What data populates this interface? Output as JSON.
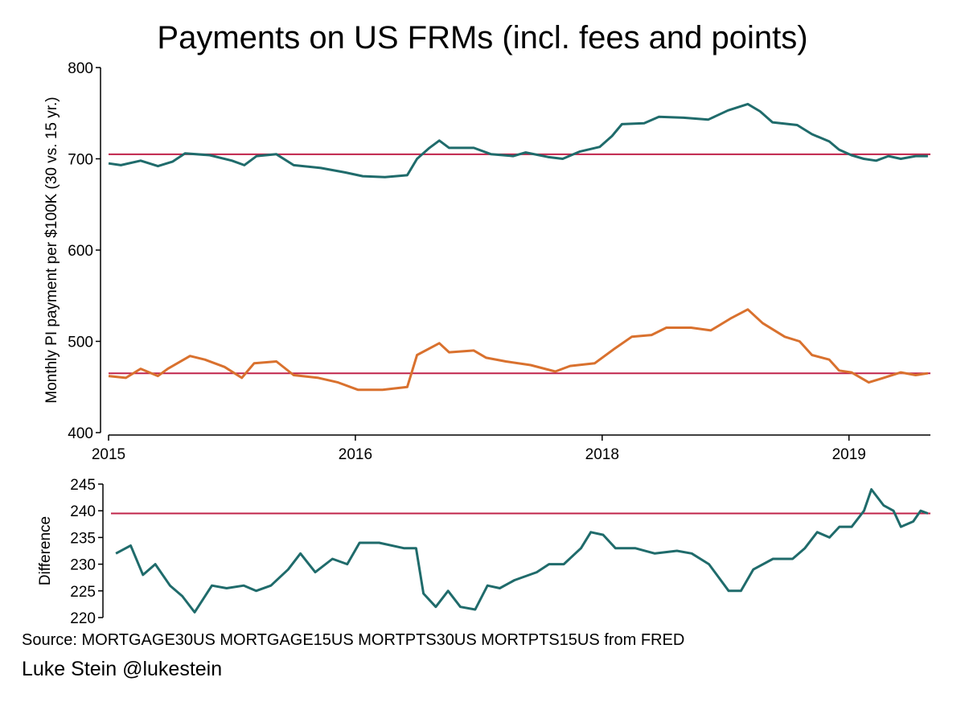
{
  "chart_data": [
    {
      "type": "line",
      "title": "Payments on US FRMs (incl. fees and points)",
      "ylabel": "Monthly PI payment per $100K (30 vs. 15 yr.)",
      "xlabel": "",
      "ylim": [
        400,
        800
      ],
      "yticks": [
        400,
        500,
        600,
        700,
        800
      ],
      "xlim": [
        0,
        3.33
      ],
      "xticks": [
        {
          "v": 0,
          "label": "2015"
        },
        {
          "v": 1,
          "label": "2016"
        },
        {
          "v": 2,
          "label": "2018"
        },
        {
          "v": 3,
          "label": "2019"
        }
      ],
      "reference_lines": [
        {
          "y": 705,
          "color": "#c0234a"
        },
        {
          "y": 465,
          "color": "#c0234a"
        }
      ],
      "series": [
        {
          "name": "30-year",
          "color": "#1f6b6b",
          "x": [
            0,
            0.05,
            0.13,
            0.2,
            0.26,
            0.31,
            0.41,
            0.5,
            0.55,
            0.6,
            0.68,
            0.75,
            0.86,
            0.96,
            1.03,
            1.12,
            1.21,
            1.25,
            1.3,
            1.34,
            1.38,
            1.48,
            1.55,
            1.64,
            1.69,
            1.78,
            1.84,
            1.91,
            1.99,
            2.04,
            2.08,
            2.17,
            2.23,
            2.33,
            2.43,
            2.51,
            2.59,
            2.64,
            2.69,
            2.79,
            2.85,
            2.92,
            2.96,
            3.01,
            3.06,
            3.11,
            3.16,
            3.21,
            3.27,
            3.32
          ],
          "y": [
            695,
            693,
            698,
            692,
            697,
            706,
            704,
            698,
            693,
            703,
            705,
            693,
            690,
            685,
            681,
            680,
            682,
            700,
            712,
            720,
            712,
            712,
            705,
            703,
            707,
            702,
            700,
            708,
            713,
            725,
            738,
            739,
            746,
            745,
            743,
            753,
            760,
            752,
            740,
            737,
            727,
            719,
            710,
            704,
            700,
            698,
            703,
            700,
            703,
            703
          ]
        },
        {
          "name": "15-year",
          "color": "#d9712e",
          "x": [
            0,
            0.07,
            0.13,
            0.2,
            0.24,
            0.33,
            0.39,
            0.47,
            0.54,
            0.59,
            0.68,
            0.75,
            0.85,
            0.93,
            1.01,
            1.11,
            1.21,
            1.25,
            1.34,
            1.38,
            1.48,
            1.53,
            1.61,
            1.71,
            1.81,
            1.87,
            1.97,
            2.05,
            2.12,
            2.2,
            2.26,
            2.36,
            2.44,
            2.52,
            2.59,
            2.65,
            2.74,
            2.8,
            2.85,
            2.92,
            2.96,
            3.01,
            3.08,
            3.14,
            3.21,
            3.27,
            3.32
          ],
          "y": [
            462,
            460,
            470,
            462,
            470,
            484,
            480,
            472,
            460,
            476,
            478,
            463,
            460,
            455,
            447,
            447,
            450,
            485,
            498,
            488,
            490,
            482,
            478,
            474,
            467,
            473,
            476,
            492,
            505,
            507,
            515,
            515,
            512,
            525,
            535,
            520,
            505,
            500,
            485,
            480,
            468,
            466,
            455,
            460,
            466,
            463,
            465
          ]
        }
      ]
    },
    {
      "type": "line",
      "ylabel": "Difference",
      "ylim": [
        220,
        245
      ],
      "yticks": [
        220,
        225,
        230,
        235,
        240,
        245
      ],
      "xlim": [
        0,
        3.33
      ],
      "reference_lines": [
        {
          "y": 239.5,
          "color": "#c0234a"
        }
      ],
      "series": [
        {
          "name": "Difference",
          "color": "#1f6b6b",
          "x": [
            0.02,
            0.08,
            0.13,
            0.18,
            0.24,
            0.29,
            0.34,
            0.41,
            0.47,
            0.54,
            0.59,
            0.65,
            0.72,
            0.77,
            0.83,
            0.9,
            0.96,
            1.01,
            1.09,
            1.19,
            1.24,
            1.27,
            1.32,
            1.37,
            1.42,
            1.48,
            1.53,
            1.58,
            1.64,
            1.73,
            1.78,
            1.84,
            1.91,
            1.95,
            2.0,
            2.05,
            2.13,
            2.21,
            2.3,
            2.36,
            2.43,
            2.51,
            2.56,
            2.61,
            2.69,
            2.77,
            2.82,
            2.87,
            2.92,
            2.96,
            3.01,
            3.06,
            3.09,
            3.14,
            3.18,
            3.21,
            3.26,
            3.29,
            3.32
          ],
          "y": [
            232,
            233.5,
            228,
            230,
            226,
            224,
            221,
            226,
            225.5,
            226,
            225,
            226,
            229,
            232,
            228.5,
            231,
            230,
            234,
            234,
            233,
            233,
            224.5,
            222,
            225,
            222,
            221.5,
            226,
            225.5,
            227,
            228.5,
            230,
            230,
            233,
            236,
            235.5,
            233,
            233,
            232,
            232.5,
            232,
            230,
            225,
            225,
            229,
            231,
            231,
            233,
            236,
            235,
            237,
            237,
            240,
            244,
            241,
            240,
            237,
            238,
            240,
            239.5
          ]
        }
      ]
    }
  ],
  "footer": {
    "source": "Source: MORTGAGE30US MORTGAGE15US MORTPTS30US MORTPTS15US from FRED",
    "author": "Luke Stein @lukestein"
  }
}
